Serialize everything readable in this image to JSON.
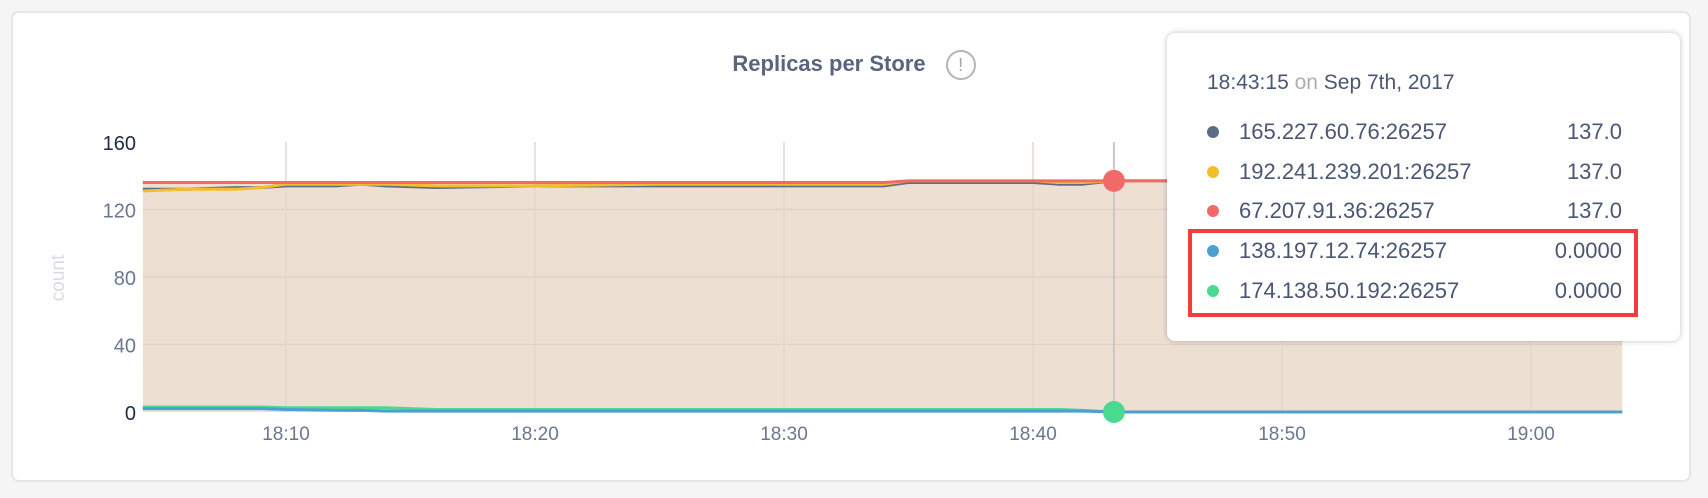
{
  "chart_data": {
    "type": "area",
    "title": "Replicas per Store",
    "ylabel": "count",
    "xlabel": "",
    "ylim": [
      0,
      160
    ],
    "yticks": [
      "0",
      "40",
      "80",
      "120",
      "160"
    ],
    "xticks": [
      "18:10",
      "18:20",
      "18:30",
      "18:40",
      "18:50",
      "19:00"
    ],
    "grid": true,
    "x": [
      "18:04:15",
      "18:06",
      "18:08",
      "18:09",
      "18:10",
      "18:12",
      "18:13",
      "18:14",
      "18:16",
      "18:20",
      "18:25",
      "18:30",
      "18:34",
      "18:35",
      "18:38",
      "18:40",
      "18:41",
      "18:42",
      "18:43:15",
      "18:50",
      "19:00",
      "19:03:40"
    ],
    "series": [
      {
        "name": "165.227.60.76:26257",
        "color": "#5f6c87",
        "values": [
          132,
          132,
          133,
          133,
          134,
          134,
          135,
          134,
          133,
          134,
          134,
          134,
          134,
          136,
          136,
          136,
          135,
          135,
          137,
          137,
          137,
          137
        ]
      },
      {
        "name": "192.241.239.201:26257",
        "color": "#f2be2c",
        "values": [
          131,
          132,
          132,
          133,
          135,
          135,
          135,
          135,
          134,
          134,
          135,
          135,
          135,
          137,
          137,
          137,
          136,
          136,
          137,
          137,
          137,
          137
        ]
      },
      {
        "name": "67.207.91.36:26257",
        "color": "#f16969",
        "values": [
          136,
          136,
          136,
          136,
          136,
          136,
          136,
          136,
          136,
          136,
          136,
          136,
          136,
          137,
          137,
          137,
          137,
          137,
          137,
          137,
          137,
          137
        ]
      },
      {
        "name": "138.197.12.74:26257",
        "color": "#4e9fd1",
        "values": [
          2,
          2,
          2,
          2,
          1.5,
          1,
          1,
          0.5,
          0.5,
          0.5,
          0.5,
          0.5,
          0.5,
          0.5,
          0.5,
          0.5,
          0.5,
          0.5,
          0,
          0,
          0,
          0
        ]
      },
      {
        "name": "174.138.50.192:26257",
        "color": "#49d990",
        "values": [
          3,
          3,
          3,
          3,
          2.5,
          2.5,
          2.5,
          2.5,
          1.5,
          1.5,
          1.5,
          1.5,
          1.5,
          1.5,
          1.5,
          1.5,
          1.5,
          1,
          0,
          0,
          0,
          0
        ]
      }
    ],
    "fill_color": "#eedfd3",
    "hover_time": "18:43:15"
  },
  "tooltip": {
    "time": "18:43:15",
    "on": "on",
    "date": "Sep 7th, 2017",
    "rows": [
      {
        "name": "165.227.60.76:26257",
        "value": "137.0",
        "color": "#5f6c87"
      },
      {
        "name": "192.241.239.201:26257",
        "value": "137.0",
        "color": "#f2be2c"
      },
      {
        "name": "67.207.91.36:26257",
        "value": "137.0",
        "color": "#f16969"
      },
      {
        "name": "138.197.12.74:26257",
        "value": "0.0000",
        "color": "#4e9fd1"
      },
      {
        "name": "174.138.50.192:26257",
        "value": "0.0000",
        "color": "#49d990"
      }
    ]
  },
  "info_icon": "info-circle-icon",
  "info_glyph": "!"
}
